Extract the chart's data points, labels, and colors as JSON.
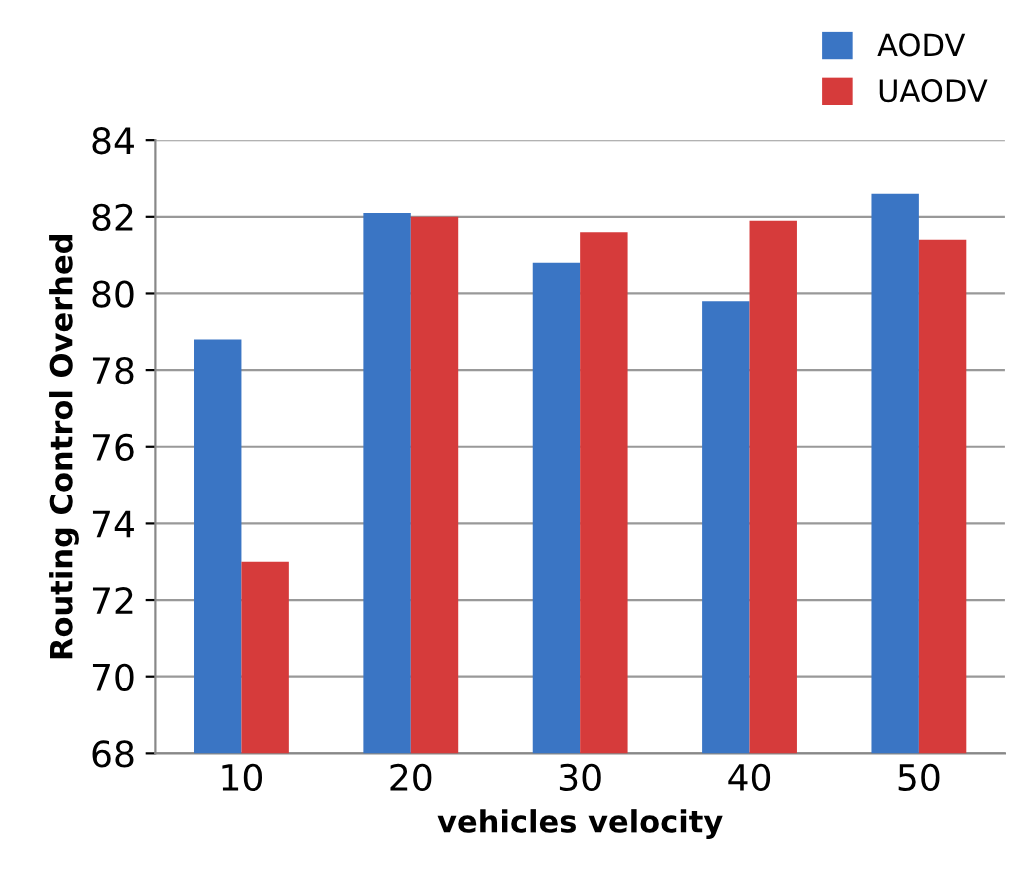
{
  "chart_data": {
    "type": "bar",
    "xlabel": "vehicles velocity",
    "ylabel": "Routing Control Overhed",
    "categories": [
      "10",
      "20",
      "30",
      "40",
      "50"
    ],
    "series": [
      {
        "name": "AODV",
        "color": "#3a75c4",
        "values": [
          78.8,
          82.1,
          80.8,
          79.8,
          82.6
        ]
      },
      {
        "name": "UAODV",
        "color": "#d63b3b",
        "values": [
          73.0,
          82.0,
          81.6,
          81.9,
          81.4
        ]
      }
    ],
    "ylim": [
      68,
      84
    ],
    "yticks": [
      68,
      70,
      72,
      74,
      76,
      78,
      80,
      82,
      84
    ],
    "grid": "y",
    "legend": "top right"
  }
}
